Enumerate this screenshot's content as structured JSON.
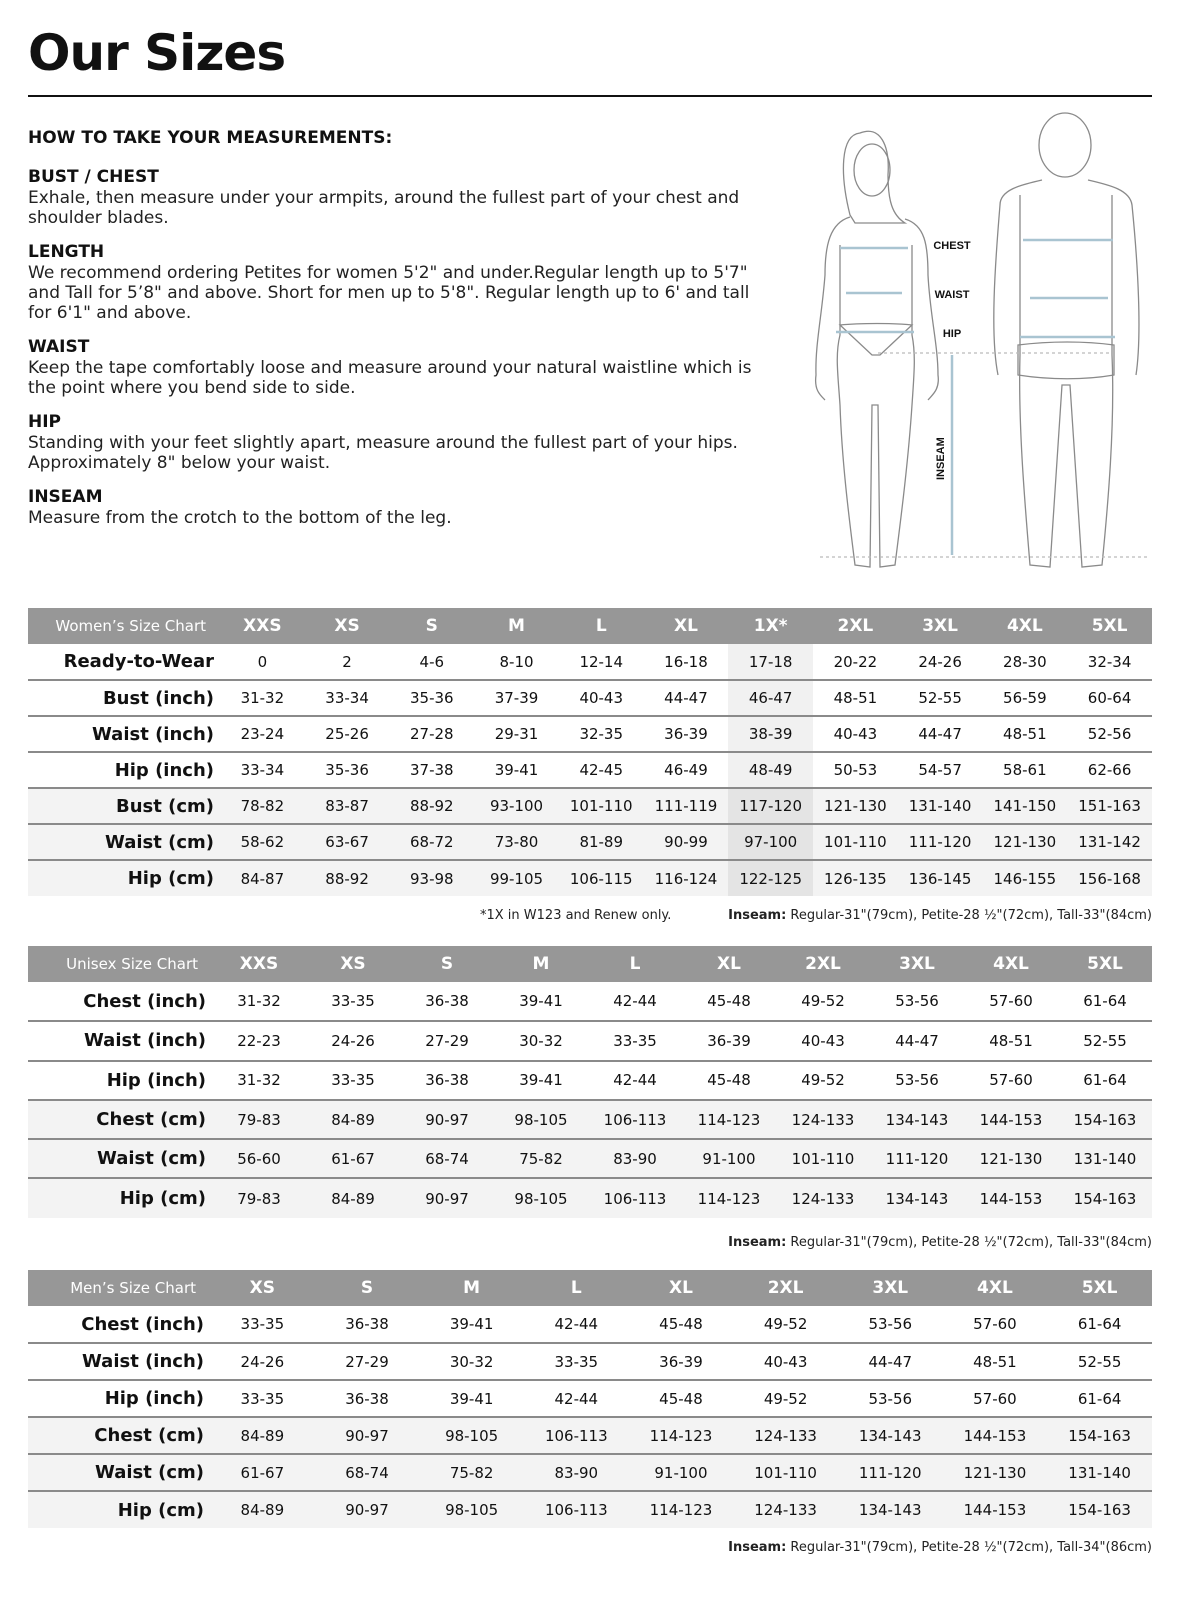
{
  "title": "Our Sizes",
  "howto": {
    "heading": "HOW TO TAKE YOUR MEASUREMENTS:",
    "sections": [
      {
        "title": "BUST / CHEST",
        "text": "Exhale, then measure under your armpits, around the fullest part of your chest and shoulder blades."
      },
      {
        "title": "LENGTH",
        "text": "We recommend ordering Petites for women 5'2\" and under.Regular length up to 5'7\" and Tall for 5’8\" and above. Short for men up to 5'8\". Regular length up to 6' and tall for 6'1\" and above."
      },
      {
        "title": "WAIST",
        "text": "Keep the tape comfortably loose and measure around your natural waistline which is the point where you bend side to side."
      },
      {
        "title": "HIP",
        "text": "Standing with your feet slightly apart, measure around the fullest part of your hips. Approximately 8\" below your waist."
      },
      {
        "title": "INSEAM",
        "text": "Measure from the crotch to the bottom of the leg."
      }
    ]
  },
  "figure": {
    "chest": "CHEST",
    "waist": "WAIST",
    "hip": "HIP",
    "inseam": "INSEAM",
    "line_color": "#a9c4d1"
  },
  "colors": {
    "header_bg": "#979797",
    "cm_row_bg": "#f3f3f3",
    "highlight_col": "#e4e4e4"
  },
  "tables": [
    {
      "title": "Women’s Size Chart",
      "sizes": [
        "XXS",
        "XS",
        "S",
        "M",
        "L",
        "XL",
        "1X*",
        "2XL",
        "3XL",
        "4XL",
        "5XL"
      ],
      "highlight_col": 6,
      "rows": [
        {
          "label": "Ready-to-Wear",
          "cm": false,
          "values": [
            "0",
            "2",
            "4-6",
            "8-10",
            "12-14",
            "16-18",
            "17-18",
            "20-22",
            "24-26",
            "28-30",
            "32-34"
          ]
        },
        {
          "label": "Bust (inch)",
          "cm": false,
          "values": [
            "31-32",
            "33-34",
            "35-36",
            "37-39",
            "40-43",
            "44-47",
            "46-47",
            "48-51",
            "52-55",
            "56-59",
            "60-64"
          ]
        },
        {
          "label": "Waist (inch)",
          "cm": false,
          "values": [
            "23-24",
            "25-26",
            "27-28",
            "29-31",
            "32-35",
            "36-39",
            "38-39",
            "40-43",
            "44-47",
            "48-51",
            "52-56"
          ]
        },
        {
          "label": "Hip (inch)",
          "cm": false,
          "values": [
            "33-34",
            "35-36",
            "37-38",
            "39-41",
            "42-45",
            "46-49",
            "48-49",
            "50-53",
            "54-57",
            "58-61",
            "62-66"
          ]
        },
        {
          "label": "Bust (cm)",
          "cm": true,
          "values": [
            "78-82",
            "83-87",
            "88-92",
            "93-100",
            "101-110",
            "111-119",
            "117-120",
            "121-130",
            "131-140",
            "141-150",
            "151-163"
          ]
        },
        {
          "label": "Waist (cm)",
          "cm": true,
          "values": [
            "58-62",
            "63-67",
            "68-72",
            "73-80",
            "81-89",
            "90-99",
            "97-100",
            "101-110",
            "111-120",
            "121-130",
            "131-142"
          ]
        },
        {
          "label": "Hip (cm)",
          "cm": true,
          "values": [
            "84-87",
            "88-92",
            "93-98",
            "99-105",
            "106-115",
            "116-124",
            "122-125",
            "126-135",
            "136-145",
            "146-155",
            "156-168"
          ]
        }
      ],
      "footnote": "*1X in W123 and Renew only.",
      "inseam_label": "Inseam:",
      "inseam_text": " Regular-31\"(79cm), Petite-28 ½\"(72cm), Tall-33\"(84cm)"
    },
    {
      "title": "Unisex Size Chart",
      "sizes": [
        "XXS",
        "XS",
        "S",
        "M",
        "L",
        "XL",
        "2XL",
        "3XL",
        "4XL",
        "5XL"
      ],
      "rows": [
        {
          "label": "Chest (inch)",
          "cm": false,
          "values": [
            "31-32",
            "33-35",
            "36-38",
            "39-41",
            "42-44",
            "45-48",
            "49-52",
            "53-56",
            "57-60",
            "61-64"
          ]
        },
        {
          "label": "Waist (inch)",
          "cm": false,
          "values": [
            "22-23",
            "24-26",
            "27-29",
            "30-32",
            "33-35",
            "36-39",
            "40-43",
            "44-47",
            "48-51",
            "52-55"
          ]
        },
        {
          "label": "Hip (inch)",
          "cm": false,
          "values": [
            "31-32",
            "33-35",
            "36-38",
            "39-41",
            "42-44",
            "45-48",
            "49-52",
            "53-56",
            "57-60",
            "61-64"
          ]
        },
        {
          "label": "Chest (cm)",
          "cm": true,
          "values": [
            "79-83",
            "84-89",
            "90-97",
            "98-105",
            "106-113",
            "114-123",
            "124-133",
            "134-143",
            "144-153",
            "154-163"
          ]
        },
        {
          "label": "Waist (cm)",
          "cm": true,
          "values": [
            "56-60",
            "61-67",
            "68-74",
            "75-82",
            "83-90",
            "91-100",
            "101-110",
            "111-120",
            "121-130",
            "131-140"
          ]
        },
        {
          "label": "Hip (cm)",
          "cm": true,
          "values": [
            "79-83",
            "84-89",
            "90-97",
            "98-105",
            "106-113",
            "114-123",
            "124-133",
            "134-143",
            "144-153",
            "154-163"
          ]
        }
      ],
      "inseam_label": "Inseam:",
      "inseam_text": " Regular-31\"(79cm), Petite-28 ½\"(72cm), Tall-33\"(84cm)"
    },
    {
      "title": "Men’s Size Chart",
      "sizes": [
        "XS",
        "S",
        "M",
        "L",
        "XL",
        "2XL",
        "3XL",
        "4XL",
        "5XL"
      ],
      "rows": [
        {
          "label": "Chest (inch)",
          "cm": false,
          "values": [
            "33-35",
            "36-38",
            "39-41",
            "42-44",
            "45-48",
            "49-52",
            "53-56",
            "57-60",
            "61-64"
          ]
        },
        {
          "label": "Waist (inch)",
          "cm": false,
          "values": [
            "24-26",
            "27-29",
            "30-32",
            "33-35",
            "36-39",
            "40-43",
            "44-47",
            "48-51",
            "52-55"
          ]
        },
        {
          "label": "Hip (inch)",
          "cm": false,
          "values": [
            "33-35",
            "36-38",
            "39-41",
            "42-44",
            "45-48",
            "49-52",
            "53-56",
            "57-60",
            "61-64"
          ]
        },
        {
          "label": "Chest (cm)",
          "cm": true,
          "values": [
            "84-89",
            "90-97",
            "98-105",
            "106-113",
            "114-123",
            "124-133",
            "134-143",
            "144-153",
            "154-163"
          ]
        },
        {
          "label": "Waist (cm)",
          "cm": true,
          "values": [
            "61-67",
            "68-74",
            "75-82",
            "83-90",
            "91-100",
            "101-110",
            "111-120",
            "121-130",
            "131-140"
          ]
        },
        {
          "label": "Hip (cm)",
          "cm": true,
          "values": [
            "84-89",
            "90-97",
            "98-105",
            "106-113",
            "114-123",
            "124-133",
            "134-143",
            "144-153",
            "154-163"
          ]
        }
      ],
      "inseam_label": "Inseam:",
      "inseam_text": " Regular-31\"(79cm), Petite-28 ½\"(72cm), Tall-34\"(86cm)"
    }
  ]
}
